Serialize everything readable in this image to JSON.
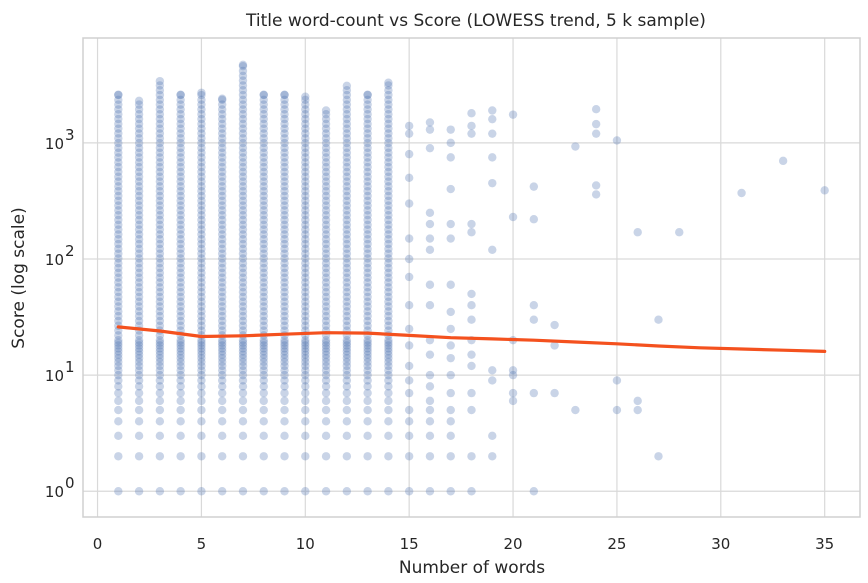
{
  "chart_data": {
    "type": "scatter",
    "title": "Title word-count vs Score (LOWESS trend, 5 k sample)",
    "xlabel": "Number of words",
    "ylabel": "Score (log scale)",
    "xlim": [
      -0.7,
      36.7
    ],
    "ylim": [
      0.6,
      8000
    ],
    "yscale": "log",
    "grid": true,
    "x_ticks": [
      0,
      5,
      10,
      15,
      20,
      25,
      30,
      35
    ],
    "y_ticks": [
      {
        "value": 1,
        "base": "10",
        "exp": "0"
      },
      {
        "value": 10,
        "base": "10",
        "exp": "1"
      },
      {
        "value": 100,
        "base": "10",
        "exp": "2"
      },
      {
        "value": 1000,
        "base": "10",
        "exp": "3"
      }
    ],
    "colors": {
      "points": "#4c72b0",
      "trend": "#f4511e",
      "grid": "#d9d9d9"
    },
    "dense_columns": [
      {
        "x": 1,
        "max": 2600
      },
      {
        "x": 2,
        "max": 2300
      },
      {
        "x": 3,
        "max": 3400
      },
      {
        "x": 4,
        "max": 2600
      },
      {
        "x": 5,
        "max": 2700
      },
      {
        "x": 6,
        "max": 2400
      },
      {
        "x": 7,
        "max": 4700
      },
      {
        "x": 8,
        "max": 2600
      },
      {
        "x": 9,
        "max": 2600
      },
      {
        "x": 10,
        "max": 2500
      },
      {
        "x": 11,
        "max": 1900
      },
      {
        "x": 12,
        "max": 3100
      },
      {
        "x": 13,
        "max": 2600
      },
      {
        "x": 14,
        "max": 3300
      }
    ],
    "sparse_points": [
      [
        15,
        1400
      ],
      [
        15,
        1200
      ],
      [
        15,
        800
      ],
      [
        15,
        500
      ],
      [
        15,
        300
      ],
      [
        15,
        150
      ],
      [
        15,
        100
      ],
      [
        15,
        70
      ],
      [
        15,
        40
      ],
      [
        15,
        25
      ],
      [
        15,
        18
      ],
      [
        15,
        12
      ],
      [
        15,
        9
      ],
      [
        15,
        7
      ],
      [
        15,
        5
      ],
      [
        15,
        4
      ],
      [
        15,
        3
      ],
      [
        15,
        2
      ],
      [
        15,
        1
      ],
      [
        16,
        1500
      ],
      [
        16,
        1300
      ],
      [
        16,
        900
      ],
      [
        16,
        250
      ],
      [
        16,
        200
      ],
      [
        16,
        150
      ],
      [
        16,
        120
      ],
      [
        16,
        60
      ],
      [
        16,
        40
      ],
      [
        16,
        20
      ],
      [
        16,
        15
      ],
      [
        16,
        10
      ],
      [
        16,
        8
      ],
      [
        16,
        6
      ],
      [
        16,
        5
      ],
      [
        16,
        4
      ],
      [
        16,
        3
      ],
      [
        16,
        2
      ],
      [
        16,
        1
      ],
      [
        17,
        1300
      ],
      [
        17,
        1000
      ],
      [
        17,
        750
      ],
      [
        17,
        400
      ],
      [
        17,
        200
      ],
      [
        17,
        150
      ],
      [
        17,
        60
      ],
      [
        17,
        35
      ],
      [
        17,
        25
      ],
      [
        17,
        18
      ],
      [
        17,
        14
      ],
      [
        17,
        10
      ],
      [
        17,
        7
      ],
      [
        17,
        5
      ],
      [
        17,
        4
      ],
      [
        17,
        3
      ],
      [
        17,
        2
      ],
      [
        17,
        1
      ],
      [
        18,
        1800
      ],
      [
        18,
        1400
      ],
      [
        18,
        1200
      ],
      [
        18,
        200
      ],
      [
        18,
        170
      ],
      [
        18,
        50
      ],
      [
        18,
        40
      ],
      [
        18,
        30
      ],
      [
        18,
        20
      ],
      [
        18,
        15
      ],
      [
        18,
        12
      ],
      [
        18,
        7
      ],
      [
        18,
        5
      ],
      [
        18,
        2
      ],
      [
        18,
        1
      ],
      [
        19,
        1900
      ],
      [
        19,
        1600
      ],
      [
        19,
        1200
      ],
      [
        19,
        750
      ],
      [
        19,
        450
      ],
      [
        19,
        120
      ],
      [
        19,
        11
      ],
      [
        19,
        9
      ],
      [
        19,
        3
      ],
      [
        19,
        2
      ],
      [
        20,
        1750
      ],
      [
        20,
        230
      ],
      [
        20,
        20
      ],
      [
        20,
        11
      ],
      [
        20,
        10
      ],
      [
        20,
        7
      ],
      [
        20,
        6
      ],
      [
        21,
        420
      ],
      [
        21,
        220
      ],
      [
        21,
        40
      ],
      [
        21,
        30
      ],
      [
        21,
        7
      ],
      [
        21,
        1
      ],
      [
        22,
        27
      ],
      [
        22,
        18
      ],
      [
        22,
        7
      ],
      [
        23,
        5
      ],
      [
        23,
        930
      ],
      [
        24,
        1950
      ],
      [
        24,
        1450
      ],
      [
        24,
        1200
      ],
      [
        24,
        430
      ],
      [
        24,
        360
      ],
      [
        25,
        1050
      ],
      [
        25,
        9
      ],
      [
        25,
        5
      ],
      [
        26,
        170
      ],
      [
        26,
        6
      ],
      [
        26,
        5
      ],
      [
        27,
        30
      ],
      [
        27,
        2
      ],
      [
        28,
        170
      ],
      [
        31,
        370
      ],
      [
        33,
        700
      ],
      [
        35,
        390
      ]
    ],
    "trend": {
      "name": "LOWESS trend",
      "x": [
        1,
        3,
        5,
        7,
        9,
        11,
        13,
        15,
        17,
        19,
        21,
        23,
        25,
        27,
        29,
        31,
        33,
        35
      ],
      "y": [
        26,
        24,
        21.5,
        21.8,
        22.5,
        23.2,
        23,
        22,
        21,
        20.5,
        20,
        19.3,
        18.6,
        17.8,
        17.2,
        16.8,
        16.4,
        16
      ]
    }
  }
}
